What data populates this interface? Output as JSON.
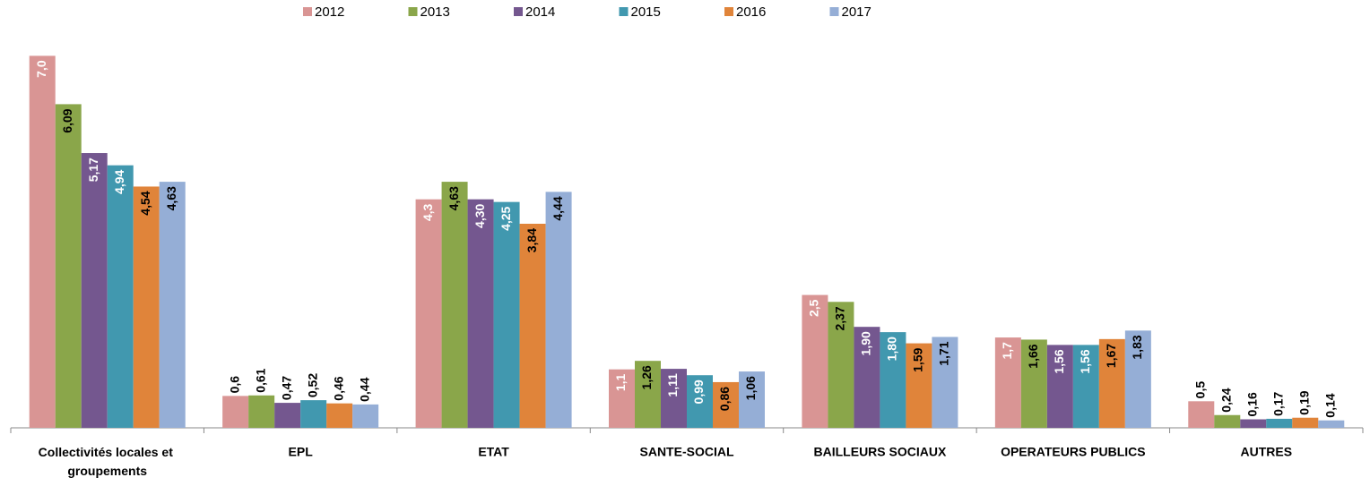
{
  "chart_data": {
    "type": "bar",
    "categories": [
      "Collectivités locales et groupements",
      "EPL",
      "ETAT",
      "SANTE-SOCIAL",
      "BAILLEURS SOCIAUX",
      "OPERATEURS PUBLICS",
      "AUTRES"
    ],
    "ylim": [
      0,
      8
    ],
    "legend": "top",
    "series": [
      {
        "name": "2012",
        "color": "#d99594",
        "label_color": "#ffffff",
        "values": [
          7.0,
          0.6,
          4.3,
          1.1,
          2.5,
          1.7,
          0.5
        ],
        "value_labels": [
          "7,0",
          "0,6",
          "4,3",
          "1,1",
          "2,5",
          "1,7",
          "0,5"
        ]
      },
      {
        "name": "2013",
        "color": "#8aa64a",
        "label_color": "#000000",
        "values": [
          6.09,
          0.61,
          4.63,
          1.26,
          2.37,
          1.66,
          0.24
        ],
        "value_labels": [
          "6,09",
          "0,61",
          "4,63",
          "1,26",
          "2,37",
          "1,66",
          "0,24"
        ]
      },
      {
        "name": "2014",
        "color": "#74578f",
        "label_color": "#ffffff",
        "values": [
          5.17,
          0.47,
          4.3,
          1.11,
          1.9,
          1.56,
          0.16
        ],
        "value_labels": [
          "5,17",
          "0,47",
          "4,30",
          "1,11",
          "1,90",
          "1,56",
          "0,16"
        ]
      },
      {
        "name": "2015",
        "color": "#4198af",
        "label_color": "#ffffff",
        "values": [
          4.94,
          0.52,
          4.25,
          0.99,
          1.8,
          1.56,
          0.17
        ],
        "value_labels": [
          "4,94",
          "0,52",
          "4,25",
          "0,99",
          "1,80",
          "1,56",
          "0,17"
        ]
      },
      {
        "name": "2016",
        "color": "#e0843a",
        "label_color": "#000000",
        "values": [
          4.54,
          0.46,
          3.84,
          0.86,
          1.59,
          1.67,
          0.19
        ],
        "value_labels": [
          "4,54",
          "0,46",
          "3,84",
          "0,86",
          "1,59",
          "1,67",
          "0,19"
        ]
      },
      {
        "name": "2017",
        "color": "#95aed6",
        "label_color": "#000000",
        "values": [
          4.63,
          0.44,
          4.44,
          1.06,
          1.71,
          1.83,
          0.14
        ],
        "value_labels": [
          "4,63",
          "0,44",
          "4,44",
          "1,06",
          "1,71",
          "1,83",
          "0,14"
        ]
      }
    ]
  }
}
